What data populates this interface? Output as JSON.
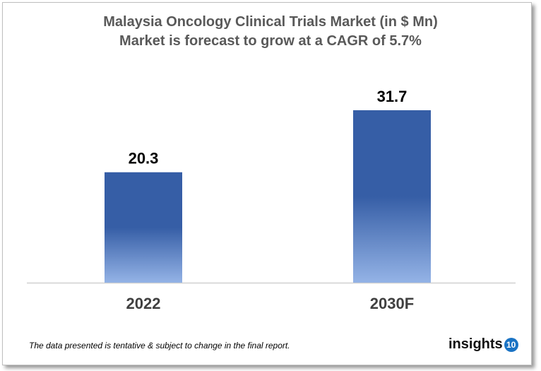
{
  "chart_data": {
    "type": "bar",
    "title": "Malaysia Oncology Clinical Trials Market (in $ Mn)",
    "subtitle": "Market is forecast to grow at a CAGR of 5.7%",
    "categories": [
      "2022",
      "2030F"
    ],
    "values": [
      20.3,
      31.7
    ],
    "data_labels": [
      "20.3",
      "31.7"
    ],
    "xlabel": "",
    "ylabel": "",
    "ylim": [
      0,
      31.7
    ],
    "grid": false,
    "bar_color": "#365ea6",
    "bar_color_light": "#94b3e6"
  },
  "footnote": "The data presented is tentative & subject to change in the final report.",
  "logo": {
    "text": "insights",
    "badge": "10",
    "color": "#1a73c4"
  }
}
